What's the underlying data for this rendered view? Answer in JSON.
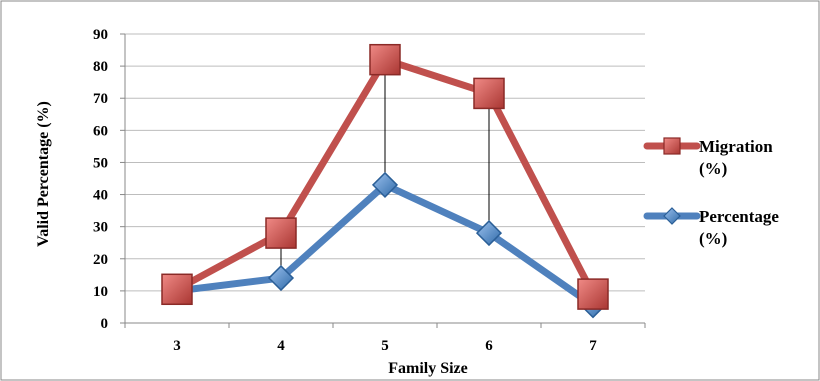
{
  "chart_data": {
    "type": "line",
    "title": "",
    "xlabel": "Family Size",
    "ylabel": "Valid Percentage (%)",
    "ylim": [
      0,
      90
    ],
    "yticks": [
      0,
      10,
      20,
      30,
      40,
      50,
      60,
      70,
      80,
      90
    ],
    "categories": [
      "3",
      "4",
      "5",
      "6",
      "7"
    ],
    "grid": true,
    "legend_position": "right",
    "series": [
      {
        "name_lines": [
          "Migration",
          "(%)"
        ],
        "values": [
          10.5,
          28,
          82,
          71.5,
          9
        ],
        "color": "#c0504d",
        "marker": "square"
      },
      {
        "name_lines": [
          "Percentage",
          "(%)"
        ],
        "values": [
          10,
          14,
          43,
          28,
          5.5
        ],
        "color": "#4f81bd",
        "marker": "diamond"
      }
    ]
  }
}
